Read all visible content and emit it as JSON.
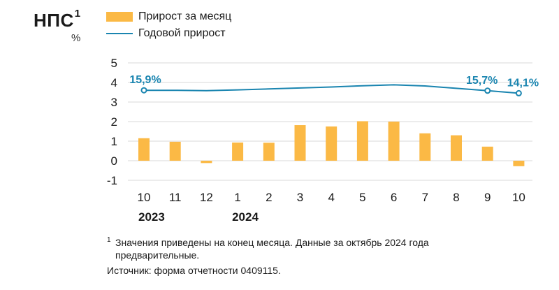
{
  "header": {
    "title": "НПС",
    "title_sup": "1",
    "unit": "%"
  },
  "legend": {
    "bars_label": "Прирост за месяц",
    "line_label": "Годовой прирост"
  },
  "colors": {
    "bars": "#fbb945",
    "line": "#1a85b0",
    "grid": "#d9d9d9"
  },
  "chart_data": {
    "type": "bar",
    "categories": [
      "10",
      "11",
      "12",
      "1",
      "2",
      "3",
      "4",
      "5",
      "6",
      "7",
      "8",
      "9",
      "10"
    ],
    "year_labels": [
      {
        "category_index": 0,
        "label": "2023"
      },
      {
        "category_index": 3,
        "label": "2024"
      }
    ],
    "series": [
      {
        "name": "Прирост за месяц",
        "type": "bar",
        "values": [
          1.15,
          0.97,
          -0.12,
          0.93,
          0.92,
          1.82,
          1.75,
          2.02,
          2.0,
          1.4,
          1.3,
          0.72,
          -0.28
        ]
      },
      {
        "name": "Годовой прирост",
        "type": "line",
        "values": [
          3.6,
          3.6,
          3.58,
          3.62,
          3.67,
          3.72,
          3.77,
          3.83,
          3.88,
          3.82,
          3.7,
          3.58,
          3.45
        ],
        "marked_points": [
          {
            "index": 0,
            "label": "15,9%"
          },
          {
            "index": 11,
            "label": "15,7%"
          },
          {
            "index": 12,
            "label": "14,1%"
          }
        ]
      }
    ],
    "ylim": [
      -1,
      5
    ],
    "yticks": [
      -1,
      0,
      1,
      2,
      3,
      4,
      5
    ],
    "grid": true,
    "legend_position": "top-left"
  },
  "footnote": {
    "mark": "1",
    "text": "Значения приведены на конец месяца. Данные за октябрь 2024 года предварительные."
  },
  "source": "Источник: форма отчетности 0409115."
}
